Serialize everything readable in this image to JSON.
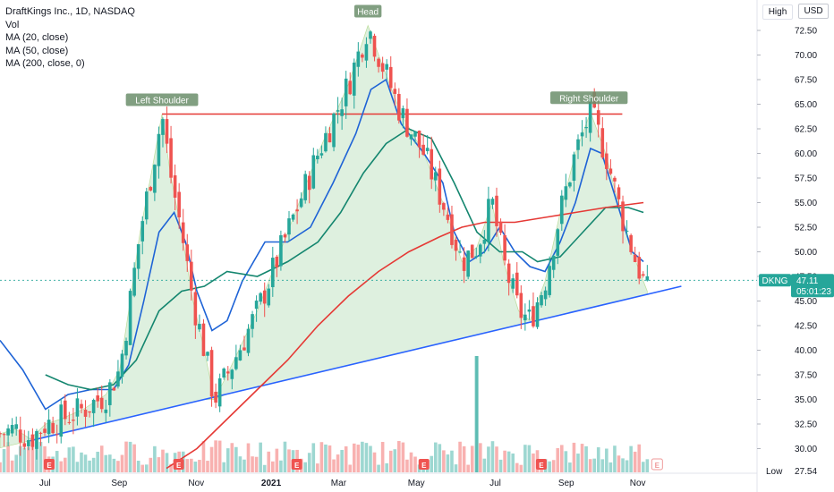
{
  "legend": {
    "title": "DraftKings Inc., 1D, NASDAQ",
    "vol": "Vol",
    "ma20": "MA (20, close)",
    "ma50": "MA (50, close)",
    "ma200": "MA (200, close, 0)"
  },
  "buttons": {
    "high": "High",
    "currency": "USD"
  },
  "low": {
    "label": "Low",
    "price": "27.54"
  },
  "colors": {
    "up": "#26a69a",
    "down": "#ef5350",
    "ma20": "#1e63d6",
    "ma50": "#14866f",
    "ma200": "#e53935",
    "trendline": "#2962ff",
    "pattern_fill": "#c8e6c9",
    "neckline": "#e53935",
    "current_price": "#26a69a"
  },
  "chart_data": {
    "type": "candlestick",
    "symbol": "DKNG",
    "ylim": [
      27.54,
      75
    ],
    "y_ticks": [
      "72.50",
      "70.00",
      "67.50",
      "65.00",
      "62.50",
      "60.00",
      "57.50",
      "55.00",
      "52.50",
      "50.00",
      "47.50",
      "45.00",
      "42.50",
      "40.00",
      "37.50",
      "35.00",
      "32.50",
      "30.00"
    ],
    "x_ticks": [
      "Jul",
      "Sep",
      "Nov",
      "2021",
      "Mar",
      "May",
      "Jul",
      "Sep",
      "Nov"
    ],
    "current_price": {
      "symbol": "DKNG",
      "price": "47.11",
      "countdown": "05:01:23"
    },
    "annotations": [
      {
        "label": "Left Shoulder",
        "price": 64.0
      },
      {
        "label": "Head",
        "price": 73.0
      },
      {
        "label": "Right Shoulder",
        "price": 64.2
      }
    ],
    "neckline_price": 64.0,
    "pattern_points": [
      {
        "t": 0.0,
        "p": 31.5
      },
      {
        "t": 0.02,
        "p": 32.0
      },
      {
        "t": 0.04,
        "p": 31.0
      },
      {
        "t": 0.06,
        "p": 32.5
      },
      {
        "t": 0.08,
        "p": 33.0
      },
      {
        "t": 0.11,
        "p": 34.0
      },
      {
        "t": 0.14,
        "p": 35.5
      },
      {
        "t": 0.158,
        "p": 38.0
      },
      {
        "t": 0.17,
        "p": 44.0
      },
      {
        "t": 0.185,
        "p": 52.0
      },
      {
        "t": 0.2,
        "p": 58.0
      },
      {
        "t": 0.214,
        "p": 64.0
      },
      {
        "t": 0.225,
        "p": 58.0
      },
      {
        "t": 0.24,
        "p": 52.0
      },
      {
        "t": 0.255,
        "p": 45.0
      },
      {
        "t": 0.27,
        "p": 40.0
      },
      {
        "t": 0.283,
        "p": 35.0
      },
      {
        "t": 0.3,
        "p": 37.5
      },
      {
        "t": 0.34,
        "p": 44.0
      },
      {
        "t": 0.38,
        "p": 52.0
      },
      {
        "t": 0.42,
        "p": 60.0
      },
      {
        "t": 0.46,
        "p": 67.0
      },
      {
        "t": 0.486,
        "p": 73.0
      },
      {
        "t": 0.505,
        "p": 69.0
      },
      {
        "t": 0.53,
        "p": 64.0
      },
      {
        "t": 0.56,
        "p": 60.0
      },
      {
        "t": 0.59,
        "p": 54.0
      },
      {
        "t": 0.61,
        "p": 49.0
      },
      {
        "t": 0.63,
        "p": 50.5
      },
      {
        "t": 0.65,
        "p": 55.0
      },
      {
        "t": 0.665,
        "p": 49.0
      },
      {
        "t": 0.685,
        "p": 44.0
      },
      {
        "t": 0.7,
        "p": 43.0
      },
      {
        "t": 0.72,
        "p": 47.0
      },
      {
        "t": 0.74,
        "p": 54.0
      },
      {
        "t": 0.76,
        "p": 60.0
      },
      {
        "t": 0.78,
        "p": 64.2
      },
      {
        "t": 0.8,
        "p": 60.0
      },
      {
        "t": 0.82,
        "p": 54.0
      },
      {
        "t": 0.84,
        "p": 49.0
      },
      {
        "t": 0.855,
        "p": 46.0
      }
    ],
    "trendline": [
      [
        0.04,
        30.8
      ],
      [
        0.9,
        46.5
      ]
    ],
    "series": [
      {
        "name": "MA (20, close)",
        "points": [
          {
            "t": 0.0,
            "p": 41.0
          },
          {
            "t": 0.03,
            "p": 38.0
          },
          {
            "t": 0.06,
            "p": 34.0
          },
          {
            "t": 0.09,
            "p": 35.5
          },
          {
            "t": 0.12,
            "p": 36.0
          },
          {
            "t": 0.15,
            "p": 36.0
          },
          {
            "t": 0.17,
            "p": 38.5
          },
          {
            "t": 0.19,
            "p": 45.0
          },
          {
            "t": 0.21,
            "p": 52.0
          },
          {
            "t": 0.23,
            "p": 54.0
          },
          {
            "t": 0.245,
            "p": 51.0
          },
          {
            "t": 0.26,
            "p": 46.0
          },
          {
            "t": 0.28,
            "p": 42.0
          },
          {
            "t": 0.3,
            "p": 43.0
          },
          {
            "t": 0.32,
            "p": 47.0
          },
          {
            "t": 0.35,
            "p": 51.0
          },
          {
            "t": 0.38,
            "p": 51.0
          },
          {
            "t": 0.41,
            "p": 52.5
          },
          {
            "t": 0.44,
            "p": 57.0
          },
          {
            "t": 0.47,
            "p": 62.0
          },
          {
            "t": 0.49,
            "p": 66.5
          },
          {
            "t": 0.51,
            "p": 67.5
          },
          {
            "t": 0.53,
            "p": 63.0
          },
          {
            "t": 0.56,
            "p": 60.0
          },
          {
            "t": 0.585,
            "p": 57.0
          },
          {
            "t": 0.6,
            "p": 52.0
          },
          {
            "t": 0.62,
            "p": 49.0
          },
          {
            "t": 0.64,
            "p": 50.0
          },
          {
            "t": 0.66,
            "p": 52.5
          },
          {
            "t": 0.68,
            "p": 50.0
          },
          {
            "t": 0.7,
            "p": 48.5
          },
          {
            "t": 0.72,
            "p": 48.0
          },
          {
            "t": 0.74,
            "p": 51.0
          },
          {
            "t": 0.76,
            "p": 55.0
          },
          {
            "t": 0.78,
            "p": 60.5
          },
          {
            "t": 0.795,
            "p": 60.0
          },
          {
            "t": 0.815,
            "p": 55.0
          },
          {
            "t": 0.835,
            "p": 50.0
          },
          {
            "t": 0.85,
            "p": 49.0
          }
        ]
      },
      {
        "name": "MA (50, close)",
        "points": [
          {
            "t": 0.06,
            "p": 37.5
          },
          {
            "t": 0.09,
            "p": 36.5
          },
          {
            "t": 0.12,
            "p": 36.0
          },
          {
            "t": 0.15,
            "p": 36.5
          },
          {
            "t": 0.18,
            "p": 39.0
          },
          {
            "t": 0.21,
            "p": 44.0
          },
          {
            "t": 0.24,
            "p": 46.0
          },
          {
            "t": 0.27,
            "p": 46.5
          },
          {
            "t": 0.3,
            "p": 48.0
          },
          {
            "t": 0.34,
            "p": 47.5
          },
          {
            "t": 0.38,
            "p": 49.0
          },
          {
            "t": 0.42,
            "p": 51.0
          },
          {
            "t": 0.45,
            "p": 54.0
          },
          {
            "t": 0.48,
            "p": 58.0
          },
          {
            "t": 0.51,
            "p": 61.0
          },
          {
            "t": 0.54,
            "p": 62.5
          },
          {
            "t": 0.57,
            "p": 61.5
          },
          {
            "t": 0.6,
            "p": 57.0
          },
          {
            "t": 0.63,
            "p": 52.0
          },
          {
            "t": 0.66,
            "p": 50.0
          },
          {
            "t": 0.69,
            "p": 50.0
          },
          {
            "t": 0.71,
            "p": 49.0
          },
          {
            "t": 0.74,
            "p": 49.5
          },
          {
            "t": 0.77,
            "p": 52.0
          },
          {
            "t": 0.8,
            "p": 54.5
          },
          {
            "t": 0.83,
            "p": 54.5
          },
          {
            "t": 0.85,
            "p": 54.0
          }
        ]
      },
      {
        "name": "MA (200, close, 0)",
        "points": [
          {
            "t": 0.22,
            "p": 28.0
          },
          {
            "t": 0.26,
            "p": 30.0
          },
          {
            "t": 0.3,
            "p": 33.0
          },
          {
            "t": 0.34,
            "p": 36.0
          },
          {
            "t": 0.38,
            "p": 39.0
          },
          {
            "t": 0.42,
            "p": 42.5
          },
          {
            "t": 0.46,
            "p": 45.5
          },
          {
            "t": 0.5,
            "p": 48.0
          },
          {
            "t": 0.54,
            "p": 50.0
          },
          {
            "t": 0.58,
            "p": 51.5
          },
          {
            "t": 0.61,
            "p": 52.5
          },
          {
            "t": 0.64,
            "p": 53.0
          },
          {
            "t": 0.68,
            "p": 53.0
          },
          {
            "t": 0.72,
            "p": 53.5
          },
          {
            "t": 0.76,
            "p": 54.0
          },
          {
            "t": 0.8,
            "p": 54.5
          },
          {
            "t": 0.85,
            "p": 55.0
          }
        ]
      }
    ],
    "volume_spikes": [
      {
        "t": 0.63,
        "v": 1.0
      }
    ],
    "earnings_markers": [
      0.065,
      0.236,
      0.392,
      0.56,
      0.715,
      0.868
    ]
  }
}
